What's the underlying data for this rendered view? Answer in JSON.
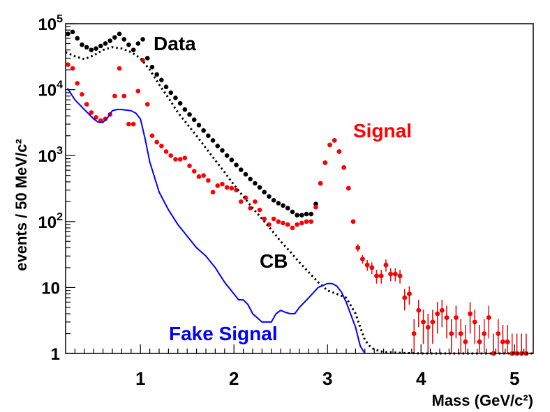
{
  "chart_data": {
    "type": "scatter",
    "title": "",
    "xlabel": "Mass (GeV/c²)",
    "ylabel": "events / 50 MeV/c²",
    "xlim": [
      0.2,
      5.2
    ],
    "ylim": [
      1,
      100000
    ],
    "yscale": "log",
    "grid": false,
    "x_ticks": [
      1,
      2,
      3,
      4,
      5
    ],
    "x_tick_labels": [
      "1",
      "2",
      "3",
      "4",
      "5"
    ],
    "y_ticks": [
      1,
      10,
      100,
      1000,
      10000,
      100000
    ],
    "y_tick_labels": [
      {
        "base": "1",
        "exp": ""
      },
      {
        "base": "10",
        "exp": ""
      },
      {
        "base": "10",
        "exp": "2"
      },
      {
        "base": "10",
        "exp": "3"
      },
      {
        "base": "10",
        "exp": "4"
      },
      {
        "base": "10",
        "exp": "5"
      }
    ],
    "annotations": [
      {
        "text": "Data",
        "color": "#000000",
        "x": 1.4,
        "y": 60000
      },
      {
        "text": "Signal",
        "color": "#ff0000",
        "x": 3.1,
        "y": 2800
      },
      {
        "text": "CB",
        "color": "#000000",
        "x": 1.5,
        "y": 22
      },
      {
        "text": "Fake Signal",
        "color": "#0000ff",
        "x": 0.3,
        "y": 2.5
      }
    ],
    "series": [
      {
        "name": "Data",
        "kind": "points",
        "color": "#000000",
        "x": [
          0.225,
          0.275,
          0.325,
          0.375,
          0.425,
          0.475,
          0.525,
          0.575,
          0.625,
          0.675,
          0.725,
          0.775,
          0.825,
          0.875,
          0.925,
          0.975,
          1.025,
          1.075,
          1.125,
          1.175,
          1.225,
          1.275,
          1.325,
          1.375,
          1.425,
          1.475,
          1.525,
          1.575,
          1.625,
          1.675,
          1.725,
          1.775,
          1.825,
          1.875,
          1.925,
          1.975,
          2.025,
          2.075,
          2.125,
          2.175,
          2.225,
          2.275,
          2.325,
          2.375,
          2.425,
          2.475,
          2.525,
          2.575,
          2.625,
          2.675,
          2.725,
          2.775,
          2.825,
          2.875,
          2.925,
          2.975,
          3.025,
          3.075,
          3.125,
          3.175,
          3.225,
          3.275,
          3.325,
          3.375,
          3.425,
          3.475,
          3.525,
          3.575,
          3.625,
          3.675,
          3.725,
          3.775,
          3.825,
          3.875,
          3.925,
          3.975,
          4.025,
          4.075,
          4.125,
          4.175,
          4.225,
          4.275,
          4.325,
          4.375,
          4.425,
          4.475,
          4.525,
          4.575,
          4.625,
          4.675,
          4.725,
          4.775,
          4.825,
          4.875,
          4.925,
          4.975,
          5.025,
          5.075,
          5.125
        ],
        "y": [
          70000,
          75000,
          60000,
          48000,
          44000,
          40000,
          42000,
          46000,
          50000,
          55000,
          62000,
          70000,
          58000,
          48000,
          40000,
          50000,
          58000,
          30000,
          22000,
          17000,
          14000,
          11000,
          9000,
          7500,
          6200,
          5000,
          4200,
          3500,
          2900,
          2400,
          2000,
          1700,
          1400,
          1200,
          1000,
          860,
          720,
          610,
          520,
          440,
          380,
          330,
          280,
          240,
          210,
          190,
          175,
          160,
          140,
          125,
          125,
          130,
          130,
          185,
          380,
          780,
          1450,
          1700,
          1150,
          660,
          320,
          100,
          40,
          27,
          22,
          20,
          15,
          15,
          22,
          16,
          16,
          15,
          7,
          8,
          2,
          4.5,
          3,
          2.5,
          3,
          4,
          4.5,
          3.5,
          2,
          3.5,
          2,
          1.5,
          4,
          3,
          1.5,
          2,
          3.5,
          1,
          2,
          1.5,
          1.5,
          1,
          1,
          1,
          1
        ],
        "err": [
          0,
          0,
          0,
          0,
          0,
          0,
          0,
          0,
          0,
          0,
          0,
          0,
          0,
          0,
          0,
          0,
          0,
          0,
          0,
          0,
          0,
          0,
          0,
          0,
          0,
          0,
          0,
          0,
          0,
          0,
          0,
          0,
          0,
          0,
          0,
          0,
          0,
          0,
          0,
          0,
          0,
          0,
          0,
          0,
          0,
          0,
          0,
          0,
          0,
          0,
          0,
          0,
          0,
          0,
          0,
          0,
          0,
          0,
          0,
          0,
          0,
          0,
          5,
          4,
          4,
          4,
          3.5,
          3.5,
          4.5,
          3.5,
          3.5,
          3.5,
          2.5,
          2.5,
          1.3,
          2,
          1.6,
          1.5,
          1.6,
          2,
          2,
          1.8,
          1.3,
          1.8,
          1.3,
          1.2,
          2,
          1.6,
          1.2,
          1.3,
          1.8,
          1,
          1.3,
          1.2,
          1.2,
          1,
          1,
          1,
          1
        ]
      },
      {
        "name": "Signal",
        "kind": "points",
        "color": "#ff0000",
        "x": [
          0.225,
          0.275,
          0.325,
          0.375,
          0.425,
          0.475,
          0.525,
          0.575,
          0.625,
          0.675,
          0.725,
          0.775,
          0.825,
          0.875,
          0.925,
          0.975,
          1.025,
          1.075,
          1.125,
          1.175,
          1.225,
          1.275,
          1.325,
          1.375,
          1.425,
          1.475,
          1.525,
          1.575,
          1.625,
          1.675,
          1.725,
          1.775,
          1.825,
          1.875,
          1.925,
          1.975,
          2.025,
          2.075,
          2.125,
          2.175,
          2.225,
          2.275,
          2.325,
          2.375,
          2.425,
          2.475,
          2.525,
          2.575,
          2.625,
          2.675,
          2.725,
          2.775,
          2.825,
          2.875,
          2.925,
          2.975,
          3.025,
          3.075,
          3.125,
          3.175,
          3.225,
          3.275,
          3.325,
          3.375,
          3.425,
          3.475,
          3.525,
          3.575,
          3.625,
          3.675,
          3.725,
          3.775,
          3.825,
          3.875,
          3.925,
          3.975,
          4.025,
          4.075,
          4.125,
          4.175,
          4.225,
          4.275,
          4.325,
          4.375,
          4.425,
          4.475,
          4.525,
          4.575,
          4.625,
          4.675,
          4.725,
          4.775,
          4.825,
          4.875,
          4.925,
          4.975,
          5.025,
          5.075,
          5.125
        ],
        "y": [
          24000,
          21000,
          12500,
          8500,
          6000,
          4500,
          3800,
          3400,
          3600,
          4200,
          8000,
          21000,
          8000,
          3000,
          3000,
          9500,
          28000,
          6000,
          2000,
          1600,
          1400,
          1150,
          1000,
          880,
          880,
          920,
          700,
          580,
          480,
          500,
          420,
          280,
          350,
          370,
          330,
          320,
          300,
          200,
          230,
          160,
          200,
          150,
          110,
          90,
          110,
          100,
          95,
          90,
          80,
          90,
          95,
          100,
          100,
          165,
          380,
          780,
          1450,
          1700,
          1150,
          660,
          320,
          100,
          40,
          27,
          22,
          20,
          15,
          15,
          22,
          16,
          16,
          15,
          7,
          8,
          2,
          4.5,
          3,
          2.5,
          3,
          4,
          4.5,
          3.5,
          2,
          3.5,
          2,
          1.5,
          4,
          3,
          1.5,
          2,
          3.5,
          1,
          2,
          1.5,
          1.5,
          1,
          1,
          1,
          1
        ],
        "err": [
          0,
          0,
          0,
          0,
          0,
          0,
          0,
          0,
          0,
          0,
          0,
          0,
          0,
          0,
          0,
          0,
          0,
          0,
          0,
          0,
          0,
          0,
          0,
          0,
          0,
          0,
          0,
          0,
          0,
          0,
          0,
          0,
          0,
          0,
          0,
          0,
          0,
          0,
          0,
          0,
          0,
          0,
          0,
          0,
          0,
          0,
          0,
          0,
          0,
          0,
          0,
          0,
          0,
          0,
          0,
          0,
          0,
          0,
          0,
          0,
          0,
          0,
          5,
          4,
          4,
          4,
          3.5,
          3.5,
          4.5,
          3.5,
          3.5,
          3.5,
          2.5,
          2.5,
          1.3,
          2,
          1.6,
          1.5,
          1.6,
          2,
          2,
          1.8,
          1.3,
          1.8,
          1.3,
          1.2,
          2,
          1.6,
          1.2,
          1.3,
          1.8,
          1,
          1.3,
          1.2,
          1.2,
          1,
          1,
          1,
          1
        ]
      },
      {
        "name": "CB",
        "kind": "line",
        "color": "#000000",
        "dash": "dotted",
        "x": [
          0.2,
          0.3,
          0.4,
          0.5,
          0.6,
          0.7,
          0.8,
          0.9,
          1.0,
          1.1,
          1.2,
          1.3,
          1.4,
          1.5,
          1.6,
          1.7,
          1.8,
          1.9,
          2.0,
          2.1,
          2.2,
          2.3,
          2.4,
          2.5,
          2.6,
          2.7,
          2.8,
          2.9,
          3.0,
          3.1,
          3.2,
          3.3,
          3.35,
          3.4,
          3.45,
          3.5,
          3.6,
          3.8,
          4.0,
          4.5,
          5.0,
          5.2
        ],
        "y": [
          37000,
          32000,
          29000,
          33000,
          40000,
          44000,
          42000,
          37000,
          30000,
          20000,
          12000,
          7500,
          4500,
          3000,
          2000,
          1300,
          850,
          560,
          360,
          240,
          160,
          110,
          75,
          50,
          35,
          24,
          17,
          12,
          9,
          8,
          7,
          4,
          2.5,
          1.6,
          1.3,
          1.15,
          1.05,
          1.02,
          1.0,
          1.0,
          1.0,
          1.0
        ]
      },
      {
        "name": "Fake Signal",
        "kind": "line",
        "color": "#0000ff",
        "dash": "solid",
        "x": [
          0.22,
          0.3,
          0.4,
          0.5,
          0.55,
          0.6,
          0.65,
          0.7,
          0.75,
          0.8,
          0.9,
          0.95,
          1.0,
          1.05,
          1.1,
          1.2,
          1.3,
          1.4,
          1.5,
          1.6,
          1.7,
          1.8,
          1.9,
          2.0,
          2.05,
          2.1,
          2.15,
          2.2,
          2.3,
          2.4,
          2.45,
          2.5,
          2.55,
          2.6,
          2.65,
          2.7,
          2.8,
          2.9,
          3.0,
          3.05,
          3.1,
          3.15,
          3.2,
          3.3,
          3.35,
          3.4
        ],
        "y": [
          10500,
          7000,
          5000,
          3600,
          3200,
          3200,
          3800,
          4800,
          5000,
          5000,
          4800,
          4400,
          3600,
          1800,
          800,
          280,
          150,
          90,
          60,
          40,
          30,
          20,
          12,
          8,
          6.5,
          6.5,
          5.5,
          4,
          3,
          3,
          4,
          4.5,
          4.2,
          4,
          4,
          5,
          7,
          10,
          11.5,
          11.5,
          10.5,
          8.5,
          6,
          2.5,
          1.3,
          1.0
        ]
      }
    ]
  }
}
